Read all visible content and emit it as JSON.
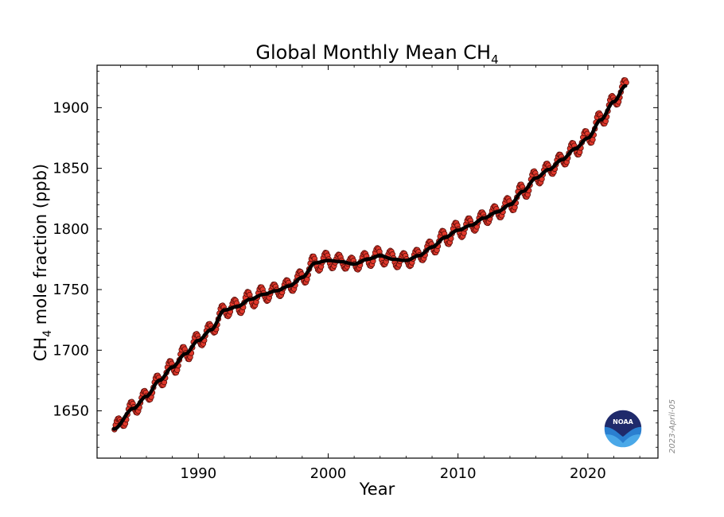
{
  "chart_data": {
    "type": "scatter",
    "title": "Global Monthly Mean CH",
    "title_subscript": "4",
    "xlabel": "Year",
    "ylabel_prefix": "CH",
    "ylabel_subscript": "4",
    "ylabel_suffix": " mole fraction (ppb)",
    "xlim": [
      1982.2,
      2025.4
    ],
    "ylim": [
      1611,
      1935
    ],
    "xticks": [
      1990,
      2000,
      2010,
      2020
    ],
    "yticks": [
      1650,
      1700,
      1750,
      1800,
      1850,
      1900
    ],
    "grid": false,
    "date_stamp": "2023-April-05",
    "logo_text": "NOAA",
    "colors": {
      "points": "#e0382b",
      "point_edge": "#5a0e0a",
      "trend": "#000000",
      "logo_dark": "#1f2a6b",
      "logo_blue": "#2a7fd0",
      "logo_light": "#4aa8e8"
    },
    "trend_anchors": {
      "x": [
        1983.5,
        1985,
        1986,
        1987,
        1988,
        1989,
        1990,
        1991,
        1992,
        1993,
        1994,
        1995,
        1996,
        1997,
        1998,
        1999,
        2000,
        2001,
        2002,
        2003,
        2004,
        2005,
        2006,
        2007,
        2008,
        2009,
        2010,
        2011,
        2012,
        2013,
        2014,
        2015,
        2016,
        2017,
        2018,
        2019,
        2020,
        2021,
        2022,
        2022.9
      ],
      "y": [
        1635,
        1652,
        1662,
        1675,
        1686,
        1697,
        1708,
        1717,
        1733,
        1736,
        1742,
        1746,
        1749,
        1753,
        1760,
        1772,
        1774,
        1773,
        1771,
        1775,
        1778,
        1775,
        1774,
        1778,
        1785,
        1793,
        1799,
        1803,
        1809,
        1814,
        1820,
        1831,
        1842,
        1849,
        1857,
        1866,
        1875,
        1890,
        1905,
        1918
      ]
    },
    "seasonal_amplitude": 6,
    "monthly_series": {
      "name": "Global monthly mean CH4",
      "x_start": 1983.54,
      "x_step": 0.0833333,
      "count": 474
    }
  }
}
